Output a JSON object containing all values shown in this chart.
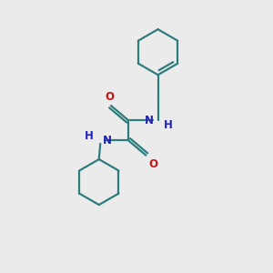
{
  "background_color": "#ebebeb",
  "bond_color": "#2d7d7d",
  "N_color": "#2222bb",
  "O_color": "#cc1111",
  "line_width": 1.6,
  "font_size_atom": 8.5,
  "fig_size": [
    3.0,
    3.0
  ],
  "dpi": 100,
  "xlim": [
    0,
    10
  ],
  "ylim": [
    0,
    10
  ]
}
